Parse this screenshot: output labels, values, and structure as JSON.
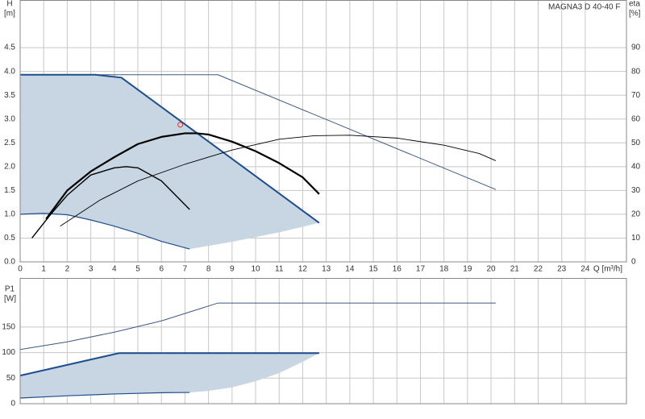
{
  "chart_data": [
    {
      "type": "line",
      "title": "MAGNA3 D 40-40 F",
      "y_label": "H",
      "y_unit": "[m]",
      "y2_label": "eta",
      "y2_unit": "[%]",
      "x_label": "Q [m³/h]",
      "xlim": [
        0,
        25.75
      ],
      "xticks": [
        0,
        1,
        2,
        3,
        4,
        5,
        6,
        7,
        8,
        9,
        10,
        11,
        12,
        13,
        14,
        15,
        16,
        17,
        18,
        19,
        20,
        21,
        22,
        23,
        24
      ],
      "xtick_labels": true,
      "ylim": [
        0,
        5.5
      ],
      "yticks": [
        {
          "value": 0,
          "label": "0.0"
        },
        0.5,
        {
          "value": 1,
          "label": "1.0"
        },
        1.5,
        {
          "value": 2,
          "label": "2.0"
        },
        2.5,
        {
          "value": 3,
          "label": "3.0"
        },
        3.5,
        {
          "value": 4,
          "label": "4.0"
        },
        4.5
      ],
      "y2lim": [
        0,
        110
      ],
      "y2ticks": [
        0,
        10,
        20,
        30,
        40,
        50,
        60,
        70,
        80,
        90
      ],
      "grid": true,
      "series": [
        {
          "kind": "area",
          "color": "#c8d6e4",
          "x": [
            0,
            3.2,
            4.3,
            12.7,
            11,
            9,
            7.2,
            6,
            5,
            4,
            3,
            2,
            1,
            0
          ],
          "values": [
            3.93,
            3.93,
            3.87,
            0.82,
            0.62,
            0.42,
            0.27,
            0.43,
            0.6,
            0.75,
            0.88,
            0.99,
            1.02,
            1.0
          ]
        },
        {
          "kind": "line",
          "color": "#3d5a80",
          "width": 1,
          "x": [
            0,
            8.4,
            20.2
          ],
          "values": [
            3.93,
            3.93,
            1.52
          ]
        },
        {
          "kind": "line",
          "color": "#1f4e8c",
          "width": 2,
          "x": [
            0,
            3.2,
            4.3,
            12.7
          ],
          "values": [
            3.93,
            3.93,
            3.87,
            0.82
          ]
        },
        {
          "kind": "line",
          "color": "#1f4e8c",
          "width": 1.2,
          "x": [
            0,
            1,
            2,
            3,
            4,
            5,
            6,
            7.2
          ],
          "values": [
            1.0,
            1.02,
            0.99,
            0.88,
            0.75,
            0.6,
            0.43,
            0.27
          ]
        },
        {
          "kind": "line",
          "color": "#000000",
          "width": 2.2,
          "axis": "y2",
          "x": [
            1.1,
            2,
            3,
            4,
            5,
            6,
            7,
            7.5,
            8,
            9,
            10,
            11,
            12,
            12.7
          ],
          "values": [
            18,
            30,
            38,
            44,
            49.5,
            52.5,
            54,
            54,
            53.5,
            50.5,
            46.5,
            41.5,
            35.5,
            28.5
          ]
        },
        {
          "kind": "line",
          "color": "#000000",
          "width": 0.9,
          "axis": "y2",
          "x": [
            1.7,
            3.4,
            5,
            7,
            9,
            11,
            12.5,
            14,
            16,
            18,
            19.5,
            20.2
          ],
          "values": [
            15,
            26,
            34,
            41,
            47,
            51.5,
            53,
            53.2,
            52,
            49,
            45.5,
            42.5
          ]
        },
        {
          "kind": "line",
          "color": "#000000",
          "width": 1.4,
          "axis": "y2",
          "x": [
            0.5,
            1.3,
            2,
            3,
            4,
            4.5,
            5,
            6,
            7.2
          ],
          "values": [
            10,
            20,
            28,
            36.5,
            39.5,
            40,
            39.5,
            34,
            22
          ]
        },
        {
          "kind": "point",
          "color": "#e03030",
          "x": [
            6.8
          ],
          "values": [
            2.88
          ]
        }
      ]
    },
    {
      "type": "line",
      "y_label": "P1",
      "y_unit": "[W]",
      "xlim": [
        0,
        25.75
      ],
      "xticks": [
        0,
        1,
        2,
        3,
        4,
        5,
        6,
        7,
        8,
        9,
        10,
        11,
        12,
        13,
        14,
        15,
        16,
        17,
        18,
        19,
        20,
        21,
        22,
        23,
        24
      ],
      "xtick_labels": false,
      "ylim": [
        0,
        246
      ],
      "yticks": [
        0,
        50,
        100,
        150
      ],
      "grid": true,
      "series": [
        {
          "kind": "area",
          "color": "#c8d6e4",
          "x": [
            0,
            4.2,
            12.7,
            12,
            11,
            10,
            9,
            8,
            7.2,
            6,
            4,
            2,
            0
          ],
          "values": [
            55,
            99,
            99,
            82,
            60,
            44,
            32,
            25,
            22,
            21.5,
            19,
            15.5,
            11
          ]
        },
        {
          "kind": "line",
          "color": "#3d5a80",
          "width": 1,
          "x": [
            0,
            2,
            4,
            6,
            8.4,
            20.2
          ],
          "values": [
            106,
            121,
            140,
            162,
            197,
            197
          ]
        },
        {
          "kind": "line",
          "color": "#1f4e8c",
          "width": 2,
          "x": [
            0,
            4.2,
            12.7
          ],
          "values": [
            55,
            99,
            99
          ]
        },
        {
          "kind": "line",
          "color": "#1f4e8c",
          "width": 1.2,
          "x": [
            0,
            2,
            4,
            6,
            7.2
          ],
          "values": [
            11,
            15.5,
            19,
            21.5,
            22
          ]
        }
      ]
    }
  ]
}
